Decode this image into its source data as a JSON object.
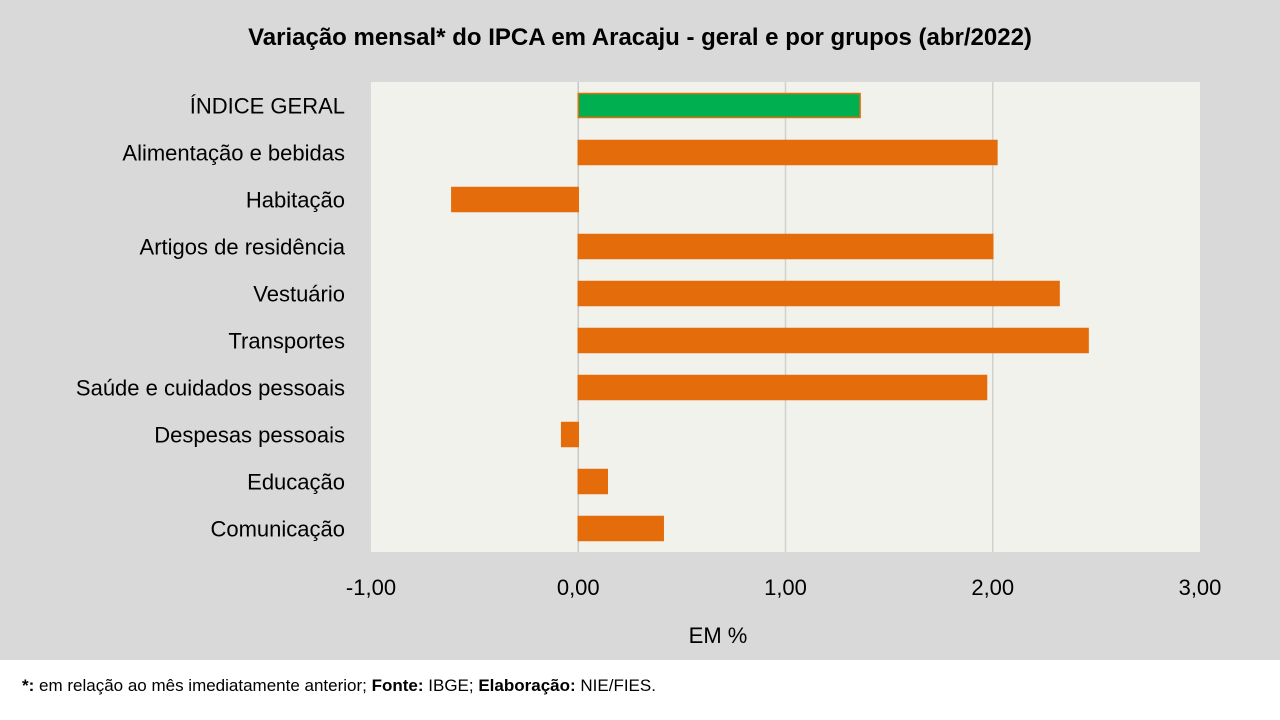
{
  "chart_data": {
    "type": "bar",
    "orientation": "horizontal",
    "title": "Variação  mensal*  do IPCA em Aracaju  - geral e por grupos  (abr/2022)",
    "xlabel": "EM %",
    "ylabel": "",
    "xlim": [
      -1.0,
      3.0
    ],
    "ticks": [
      -1.0,
      0.0,
      1.0,
      2.0,
      3.0
    ],
    "tick_labels": [
      "-1,00",
      "0,00",
      "1,00",
      "2,00",
      "3,00"
    ],
    "grid": true,
    "categories": [
      "ÍNDICE GERAL",
      "Alimentação e bebidas",
      "Habitação",
      "Artigos de residência",
      "Vestuário",
      "Transportes",
      "Saúde e cuidados pessoais",
      "Despesas pessoais",
      "Educação",
      "Comunicação"
    ],
    "values": [
      1.36,
      2.02,
      -0.61,
      2.0,
      2.32,
      2.46,
      1.97,
      -0.08,
      0.14,
      0.41
    ],
    "colors": {
      "highlight": "#00b050",
      "default": "#e46c0a",
      "plot_bg": "#f2f2ec",
      "gridline": "#d0d0d0"
    },
    "highlight_index": 0
  },
  "footnote": {
    "mark": "*:",
    "text1": " em relação ao mês imediatamente  anterior; ",
    "source_label": "Fonte:",
    "source_text": " IBGE; ",
    "elab_label": "Elaboração:",
    "elab_text": " NIE/FIES."
  }
}
